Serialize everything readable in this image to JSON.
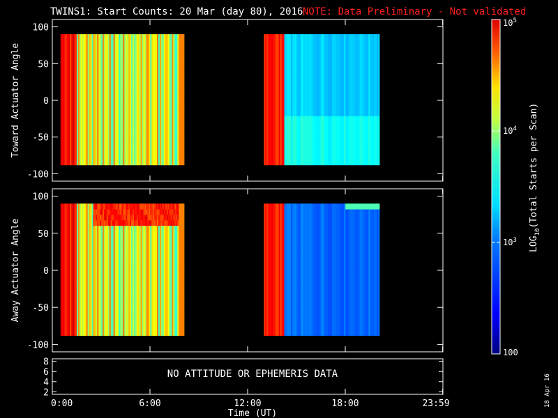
{
  "title": {
    "main": "TWINS1: Start Counts: 20 Mar (day  80), 2016",
    "note": "NOTE: Data Preliminary - Not validated",
    "note_color": "#ff2020"
  },
  "chart_data": [
    {
      "type": "heatmap",
      "name": "toward",
      "ylabel": "Toward Actuator Angle",
      "ylim": [
        -110,
        110
      ],
      "yticks": [
        100,
        50,
        0,
        -50,
        -100
      ],
      "ytick_labels": [
        "100",
        "50",
        "0",
        "-50",
        "-100"
      ],
      "data_y_range": [
        -88,
        90
      ],
      "data_segments_hours": [
        [
          0.5,
          8.1
        ],
        [
          13.0,
          20.1
        ]
      ],
      "value_units": "log10(Total Starts per Scan)"
    },
    {
      "type": "heatmap",
      "name": "away",
      "ylabel": "Away Actuator Angle",
      "ylim": [
        -110,
        110
      ],
      "yticks": [
        100,
        50,
        0,
        -50,
        -100
      ],
      "ytick_labels": [
        "100",
        "50",
        "0",
        "-50",
        "-100"
      ],
      "data_y_range": [
        -88,
        90
      ],
      "data_segments_hours": [
        [
          0.5,
          8.1
        ],
        [
          13.0,
          20.1
        ]
      ],
      "value_units": "log10(Total Starts per Scan)"
    },
    {
      "type": "line",
      "name": "ephemeris",
      "ylim": [
        1.5,
        8.5
      ],
      "yticks": [
        8,
        6,
        4,
        2
      ],
      "ytick_labels": [
        "8",
        "6",
        "4",
        "2"
      ],
      "message": "NO ATTITUDE OR EPHEMERIS DATA"
    }
  ],
  "x_axis": {
    "label": "Time (UT)",
    "range_hours": [
      0,
      24
    ],
    "ticks": [
      0,
      6,
      12,
      18,
      23.983
    ],
    "tick_labels": [
      "0:00",
      "6:00",
      "12:00",
      "18:00",
      "23:59"
    ]
  },
  "colorbar": {
    "label_parts": [
      "LOG",
      "10",
      "(Total Starts per Scan)"
    ],
    "range_log": [
      2,
      5
    ],
    "ticks": [
      {
        "value": 2,
        "base": "100",
        "exp": ""
      },
      {
        "value": 3,
        "base": "10",
        "exp": "3"
      },
      {
        "value": 4,
        "base": "10",
        "exp": "4"
      },
      {
        "value": 5,
        "base": "10",
        "exp": "5"
      }
    ]
  },
  "date_stamp": "18 Apr 16"
}
